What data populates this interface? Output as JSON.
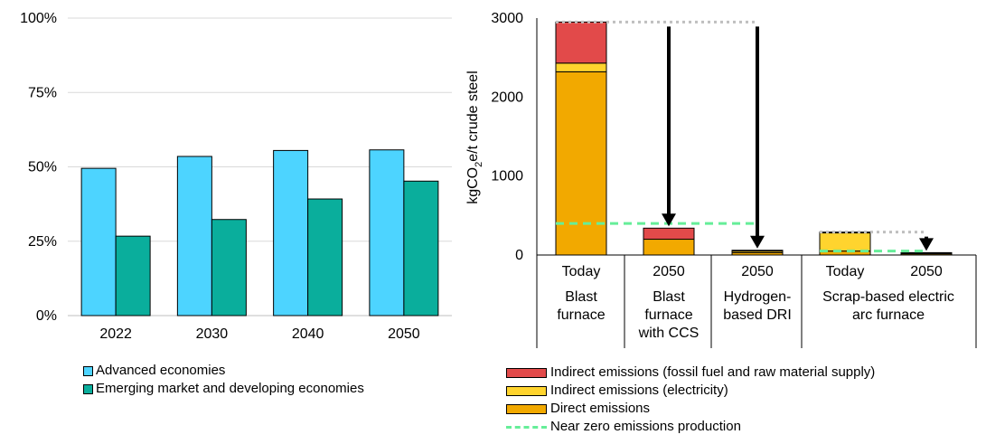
{
  "chart_data": [
    {
      "type": "bar",
      "categories": [
        "2022",
        "2030",
        "2040",
        "2050"
      ],
      "series": [
        {
          "name": "Advanced economies",
          "color": "#4dd4ff",
          "values": [
            0.495,
            0.535,
            0.555,
            0.557
          ]
        },
        {
          "name": "Emerging market and developing economies",
          "color": "#0aae9c",
          "values": [
            0.267,
            0.323,
            0.392,
            0.452
          ]
        }
      ],
      "yticks": [
        "0%",
        "25%",
        "50%",
        "75%",
        "100%"
      ],
      "ylim": [
        0,
        1
      ],
      "grid": true,
      "legend_position": "bottom-left"
    },
    {
      "type": "bar",
      "stacked": true,
      "ylabel_parts": [
        "kgCO",
        "2",
        "e/t crude steel"
      ],
      "ylim": [
        0,
        3000
      ],
      "yticks": [
        "0",
        "1000",
        "2000",
        "3000"
      ],
      "category_top_labels": [
        "Today",
        "2050",
        "2050",
        "Today",
        "2050"
      ],
      "groups": [
        {
          "lines": [
            "Blast",
            "furnace"
          ]
        },
        {
          "lines": [
            "Blast",
            "furnace",
            "with CCS"
          ]
        },
        {
          "lines": [
            "Hydrogen-",
            "based DRI"
          ]
        },
        {
          "lines": [
            "Scrap-based electric",
            "arc furnace"
          ]
        }
      ],
      "series": [
        {
          "name": "Direct emissions",
          "color": "#f2a900",
          "values": [
            2320,
            200,
            30,
            50,
            15
          ]
        },
        {
          "name": "Indirect emissions (electricity)",
          "color": "#ffd42e",
          "values": [
            110,
            0,
            20,
            230,
            5
          ]
        },
        {
          "name": "Indirect emissions (fossil fuel and raw material supply)",
          "color": "#e24a4a",
          "values": [
            520,
            140,
            10,
            10,
            10
          ]
        }
      ],
      "reference_lines": [
        {
          "name": "Near zero emissions production",
          "color": "#66ee99",
          "levels": [
            400,
            50
          ]
        }
      ],
      "legend_position": "bottom"
    }
  ],
  "legend_left": [
    {
      "label": "Advanced economies",
      "color": "#4dd4ff"
    },
    {
      "label": "Emerging market and developing economies",
      "color": "#0aae9c"
    }
  ],
  "legend_right": [
    {
      "label": "Indirect emissions (fossil fuel and raw material supply)",
      "color": "#e24a4a",
      "kind": "bar"
    },
    {
      "label": "Indirect emissions (electricity)",
      "color": "#ffd42e",
      "kind": "bar"
    },
    {
      "label": "Direct emissions",
      "color": "#f2a900",
      "kind": "bar"
    },
    {
      "label": "Near zero emissions production",
      "color": "#66ee99",
      "kind": "dash"
    }
  ]
}
